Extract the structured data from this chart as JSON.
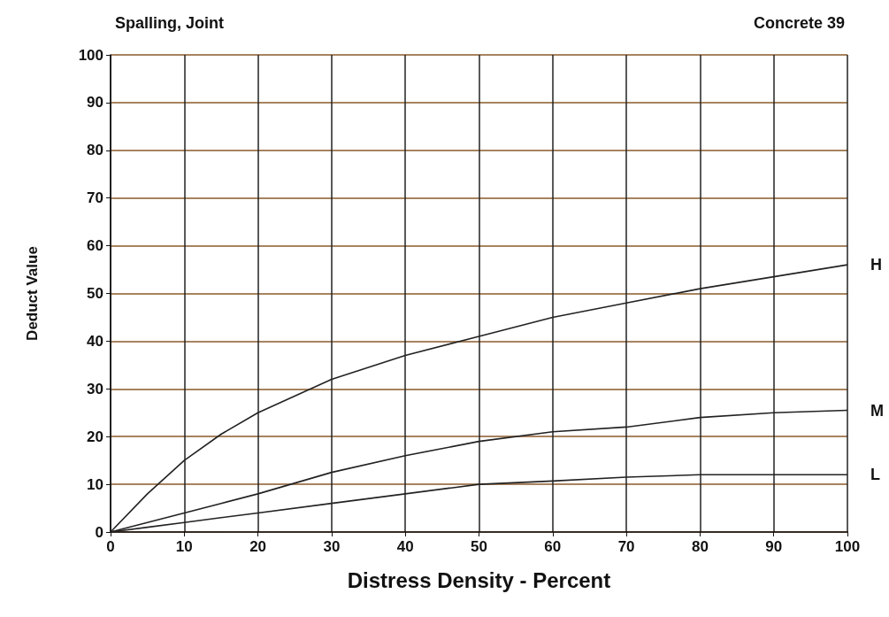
{
  "chart_data": {
    "type": "line",
    "title": "Spalling, Joint",
    "subtitle": "Concrete 39",
    "xlabel": "Distress Density - Percent",
    "ylabel": "Deduct Value",
    "x": [
      0,
      5,
      10,
      15,
      20,
      30,
      40,
      50,
      60,
      70,
      80,
      90,
      100
    ],
    "series": [
      {
        "name": "H",
        "color": "#222222",
        "values": [
          0,
          8,
          15,
          20.5,
          25,
          32,
          37,
          41,
          45,
          48,
          51,
          53.5,
          56
        ]
      },
      {
        "name": "M",
        "color": "#222222",
        "values": [
          0,
          2,
          4,
          6,
          8,
          12.5,
          16,
          19,
          21,
          22,
          24,
          25,
          25.5
        ]
      },
      {
        "name": "L",
        "color": "#222222",
        "values": [
          0,
          1,
          2,
          3,
          4,
          6,
          8,
          10,
          10.7,
          11.5,
          12,
          12,
          12
        ]
      }
    ],
    "xlim": [
      0,
      100
    ],
    "xticks": [
      0,
      10,
      20,
      30,
      40,
      50,
      60,
      70,
      80,
      90,
      100
    ],
    "ylim": [
      0,
      100
    ],
    "yticks": [
      0,
      10,
      20,
      30,
      40,
      50,
      60,
      70,
      80,
      90,
      100
    ],
    "grid": true,
    "marker": "none",
    "line_style": "solid",
    "legend": false
  }
}
